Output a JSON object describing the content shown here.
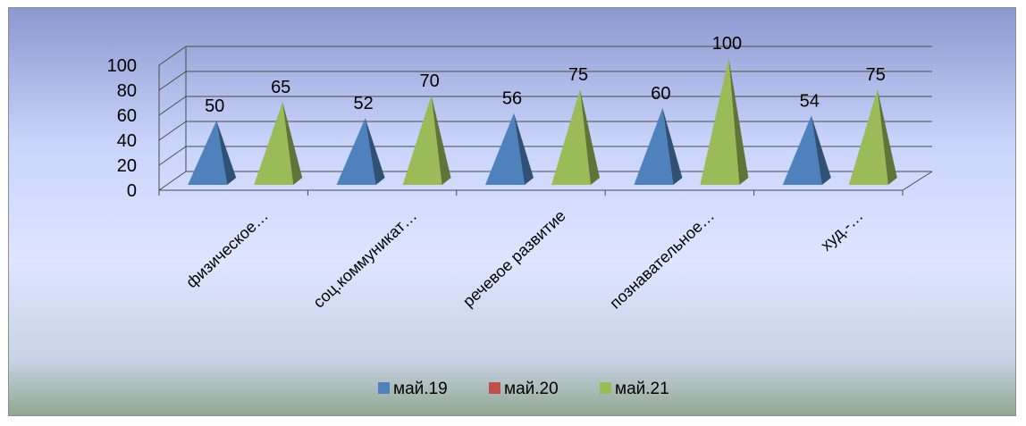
{
  "chart_data": {
    "type": "bar",
    "bar_shape": "3d-pyramid",
    "categories": [
      "физическое…",
      "соц.коммуникат…",
      "речевое развитие",
      "познавательное…",
      "худ.-…"
    ],
    "series": [
      {
        "name": "май.19",
        "values": [
          50,
          52,
          56,
          60,
          54
        ],
        "color": "#4f81bd"
      },
      {
        "name": "май.20",
        "values": [
          null,
          null,
          null,
          null,
          null
        ],
        "color": "#c0504d"
      },
      {
        "name": "май.21",
        "values": [
          65,
          70,
          75,
          100,
          75
        ],
        "color": "#9bbb59"
      }
    ],
    "y_ticks": [
      "0",
      "20",
      "40",
      "60",
      "80",
      "100"
    ],
    "ylim": [
      0,
      100
    ],
    "grid": true,
    "legend_position": "bottom"
  },
  "colors": {
    "background_top": "#8b98cf",
    "background_mid": "#dbe4ff",
    "background_bottom": "#8fa68e",
    "gridline": "#4a4a4a"
  }
}
